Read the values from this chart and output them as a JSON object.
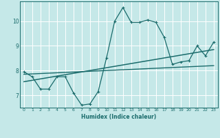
{
  "xlabel": "Humidex (Indice chaleur)",
  "bg_color": "#c5e8e8",
  "grid_color": "#ffffff",
  "line_color": "#1a6b6b",
  "xlim": [
    -0.5,
    23.5
  ],
  "ylim": [
    6.5,
    10.8
  ],
  "xticks": [
    0,
    1,
    2,
    3,
    4,
    5,
    6,
    7,
    8,
    9,
    10,
    11,
    12,
    13,
    14,
    15,
    16,
    17,
    18,
    19,
    20,
    21,
    22,
    23
  ],
  "yticks": [
    7,
    8,
    9,
    10
  ],
  "main_x": [
    0,
    1,
    2,
    3,
    4,
    5,
    6,
    7,
    8,
    9,
    10,
    11,
    12,
    13,
    14,
    15,
    16,
    17,
    18,
    19,
    20,
    21,
    22,
    23
  ],
  "main_y": [
    7.95,
    7.75,
    7.25,
    7.25,
    7.75,
    7.75,
    7.1,
    6.6,
    6.65,
    7.15,
    8.5,
    10.0,
    10.55,
    9.95,
    9.95,
    10.05,
    9.95,
    9.35,
    8.25,
    8.35,
    8.4,
    9.0,
    8.6,
    9.15
  ],
  "trend1_x": [
    0,
    23
  ],
  "trend1_y": [
    7.55,
    8.85
  ],
  "trend2_x": [
    0,
    23
  ],
  "trend2_y": [
    7.85,
    8.2
  ]
}
